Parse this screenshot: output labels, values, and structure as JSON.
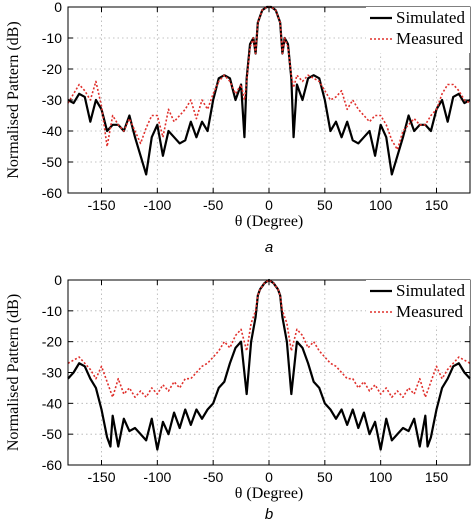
{
  "chart_data": [
    {
      "type": "line",
      "caption": "a",
      "xlabel": "θ (Degree)",
      "ylabel": "Normalised Pattern (dB)",
      "xlim": [
        -180,
        180
      ],
      "ylim": [
        -60,
        0
      ],
      "xticks": [
        -150,
        -100,
        -50,
        0,
        50,
        100,
        150
      ],
      "yticks": [
        0,
        -10,
        -20,
        -30,
        -40,
        -50,
        -60
      ],
      "grid": true,
      "legend_position": "top-right",
      "series": [
        {
          "name": "Simulated",
          "color": "#000000",
          "style": "solid",
          "x": [
            -180,
            -175,
            -170,
            -165,
            -160,
            -155,
            -150,
            -145,
            -140,
            -135,
            -130,
            -125,
            -120,
            -115,
            -110,
            -105,
            -100,
            -95,
            -90,
            -85,
            -80,
            -75,
            -70,
            -65,
            -60,
            -55,
            -50,
            -45,
            -40,
            -35,
            -30,
            -25,
            -22,
            -20,
            -17,
            -14,
            -12,
            -10,
            -8,
            -6,
            -4,
            -2,
            0,
            2,
            4,
            6,
            8,
            10,
            12,
            14,
            17,
            20,
            22,
            25,
            30,
            35,
            40,
            45,
            50,
            55,
            60,
            65,
            70,
            75,
            80,
            85,
            90,
            95,
            100,
            105,
            110,
            115,
            120,
            125,
            130,
            135,
            140,
            145,
            150,
            155,
            160,
            165,
            170,
            175,
            180
          ],
          "y": [
            -30,
            -31,
            -28,
            -29,
            -37,
            -30,
            -33,
            -40,
            -38,
            -38,
            -40,
            -35,
            -42,
            -48,
            -54,
            -42,
            -38,
            -48,
            -40,
            -42,
            -44,
            -43,
            -37,
            -42,
            -37,
            -40,
            -30,
            -23,
            -22,
            -23,
            -30,
            -25,
            -42,
            -23,
            -12,
            -10,
            -15,
            -5,
            -3,
            -1,
            -0.5,
            0,
            0,
            0,
            -0.5,
            -1,
            -3,
            -5,
            -15,
            -10,
            -12,
            -23,
            -42,
            -25,
            -30,
            -23,
            -22,
            -23,
            -30,
            -40,
            -37,
            -42,
            -37,
            -43,
            -44,
            -42,
            -40,
            -48,
            -38,
            -42,
            -54,
            -48,
            -42,
            -35,
            -40,
            -38,
            -38,
            -40,
            -33,
            -30,
            -37,
            -29,
            -28,
            -31,
            -30
          ]
        },
        {
          "name": "Measured",
          "color": "#e0302c",
          "style": "dotted",
          "x": [
            -180,
            -175,
            -170,
            -165,
            -160,
            -155,
            -150,
            -145,
            -140,
            -135,
            -130,
            -125,
            -120,
            -115,
            -110,
            -105,
            -100,
            -95,
            -90,
            -85,
            -80,
            -75,
            -70,
            -65,
            -60,
            -55,
            -50,
            -45,
            -40,
            -35,
            -30,
            -25,
            -22,
            -20,
            -17,
            -14,
            -12,
            -10,
            -8,
            -6,
            -4,
            -2,
            0,
            2,
            4,
            6,
            8,
            10,
            12,
            14,
            17,
            20,
            22,
            25,
            30,
            35,
            40,
            45,
            50,
            55,
            60,
            65,
            70,
            75,
            80,
            85,
            90,
            95,
            100,
            105,
            110,
            115,
            120,
            125,
            130,
            135,
            140,
            145,
            150,
            155,
            160,
            165,
            170,
            175,
            180
          ],
          "y": [
            -31,
            -28,
            -25,
            -27,
            -30,
            -24,
            -32,
            -45,
            -35,
            -38,
            -40,
            -36,
            -40,
            -44,
            -39,
            -35,
            -35,
            -42,
            -33,
            -37,
            -35,
            -33,
            -30,
            -36,
            -30,
            -33,
            -28,
            -24,
            -22,
            -24,
            -28,
            -25,
            -30,
            -24,
            -13,
            -10,
            -15,
            -5,
            -3,
            -1,
            -0.5,
            0,
            0,
            0,
            -0.5,
            -1,
            -3,
            -5,
            -15,
            -10,
            -13,
            -22,
            -26,
            -22,
            -24,
            -22,
            -23,
            -24,
            -27,
            -30,
            -29,
            -27,
            -33,
            -30,
            -33,
            -35,
            -37,
            -35,
            -35,
            -38,
            -43,
            -46,
            -40,
            -38,
            -36,
            -38,
            -38,
            -35,
            -33,
            -28,
            -25,
            -25,
            -27,
            -30,
            -31
          ]
        }
      ]
    },
    {
      "type": "line",
      "caption": "b",
      "xlabel": "θ (Degree)",
      "ylabel": "Normalised Pattern (dB)",
      "xlim": [
        -180,
        180
      ],
      "ylim": [
        -60,
        0
      ],
      "xticks": [
        -150,
        -100,
        -50,
        0,
        50,
        100,
        150
      ],
      "yticks": [
        0,
        -10,
        -20,
        -30,
        -40,
        -50,
        -60
      ],
      "grid": true,
      "legend_position": "top-right",
      "series": [
        {
          "name": "Simulated",
          "color": "#000000",
          "style": "solid",
          "x": [
            -180,
            -175,
            -170,
            -165,
            -160,
            -155,
            -150,
            -145,
            -142,
            -140,
            -135,
            -130,
            -125,
            -120,
            -115,
            -110,
            -105,
            -100,
            -95,
            -90,
            -85,
            -80,
            -75,
            -70,
            -65,
            -60,
            -55,
            -50,
            -45,
            -40,
            -35,
            -30,
            -25,
            -20,
            -16,
            -12,
            -10,
            -8,
            -6,
            -4,
            -2,
            0,
            2,
            4,
            6,
            8,
            10,
            12,
            16,
            20,
            25,
            30,
            35,
            40,
            45,
            50,
            55,
            60,
            65,
            70,
            75,
            80,
            85,
            90,
            95,
            100,
            105,
            110,
            115,
            120,
            125,
            130,
            135,
            140,
            142,
            145,
            150,
            155,
            160,
            165,
            170,
            175,
            180
          ],
          "y": [
            -32,
            -30,
            -27,
            -28,
            -32,
            -35,
            -42,
            -51,
            -54,
            -44,
            -54,
            -45,
            -49,
            -48,
            -50,
            -52,
            -45,
            -55,
            -46,
            -50,
            -43,
            -48,
            -42,
            -47,
            -42,
            -45,
            -42,
            -40,
            -35,
            -33,
            -27,
            -22,
            -20,
            -37,
            -20,
            -12,
            -5,
            -3,
            -2,
            -1,
            -0.5,
            0,
            -0.5,
            -1,
            -2,
            -3,
            -5,
            -12,
            -20,
            -37,
            -20,
            -22,
            -27,
            -33,
            -35,
            -40,
            -42,
            -45,
            -42,
            -47,
            -42,
            -48,
            -43,
            -50,
            -46,
            -55,
            -45,
            -52,
            -50,
            -48,
            -49,
            -45,
            -54,
            -44,
            -54,
            -51,
            -42,
            -35,
            -32,
            -28,
            -27,
            -30,
            -32
          ]
        },
        {
          "name": "Measured",
          "color": "#e0302c",
          "style": "dotted",
          "x": [
            -180,
            -175,
            -170,
            -165,
            -160,
            -155,
            -150,
            -145,
            -140,
            -135,
            -130,
            -125,
            -120,
            -115,
            -110,
            -105,
            -100,
            -95,
            -90,
            -85,
            -80,
            -75,
            -70,
            -65,
            -60,
            -55,
            -50,
            -45,
            -40,
            -35,
            -30,
            -25,
            -20,
            -16,
            -12,
            -10,
            -8,
            -6,
            -4,
            -2,
            0,
            2,
            4,
            6,
            8,
            10,
            12,
            16,
            20,
            25,
            30,
            35,
            40,
            45,
            50,
            55,
            60,
            65,
            70,
            75,
            80,
            85,
            90,
            95,
            100,
            105,
            110,
            115,
            120,
            125,
            130,
            135,
            140,
            145,
            150,
            155,
            160,
            165,
            170,
            175,
            180
          ],
          "y": [
            -27,
            -26,
            -25,
            -27,
            -29,
            -32,
            -28,
            -33,
            -38,
            -32,
            -37,
            -35,
            -38,
            -36,
            -38,
            -35,
            -37,
            -34,
            -36,
            -33,
            -35,
            -32,
            -32,
            -30,
            -28,
            -27,
            -25,
            -23,
            -20,
            -22,
            -18,
            -16,
            -23,
            -14,
            -10,
            -5,
            -3,
            -2,
            -1,
            -0.5,
            0,
            -0.5,
            -1,
            -2,
            -3,
            -5,
            -10,
            -14,
            -23,
            -16,
            -18,
            -22,
            -20,
            -23,
            -25,
            -27,
            -28,
            -30,
            -32,
            -32,
            -35,
            -33,
            -36,
            -34,
            -37,
            -35,
            -38,
            -36,
            -38,
            -35,
            -37,
            -32,
            -38,
            -33,
            -28,
            -32,
            -29,
            -27,
            -25,
            -26,
            -27
          ]
        }
      ]
    }
  ]
}
